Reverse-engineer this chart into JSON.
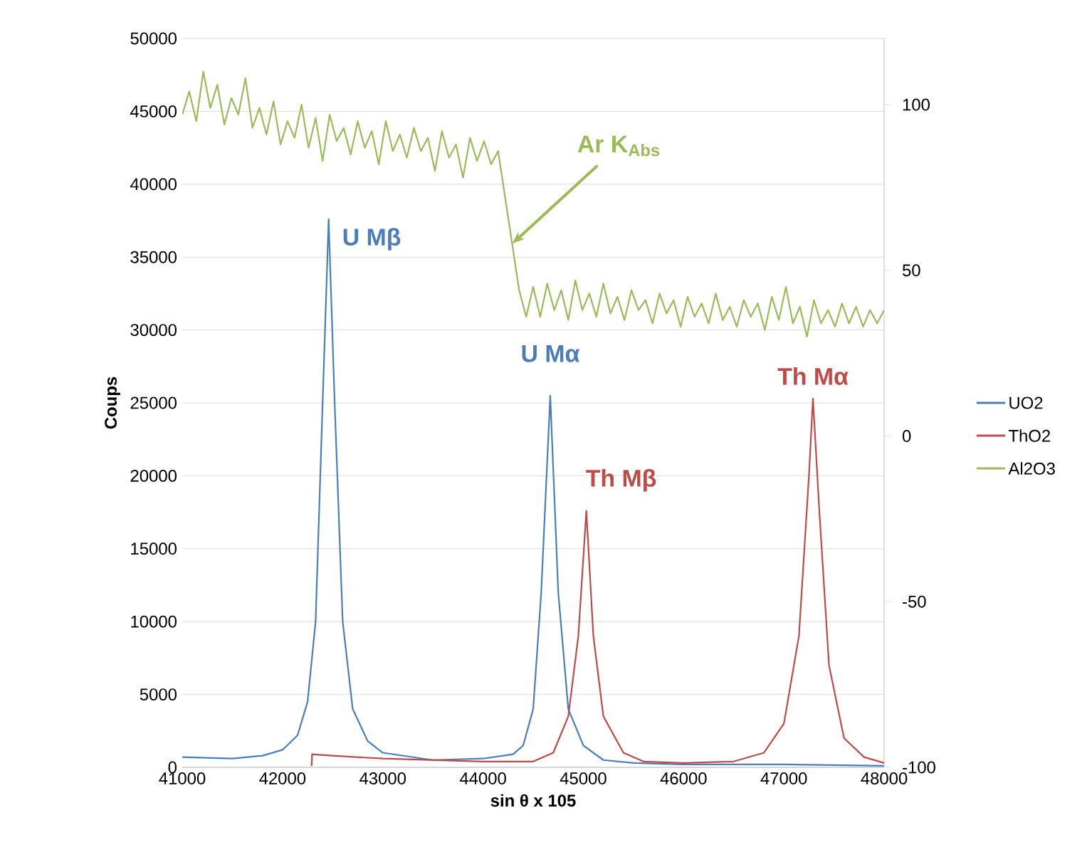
{
  "chart_data": {
    "type": "line",
    "xlabel": "sin θ x 105",
    "ylabel": "Coups",
    "xlim": [
      41000,
      48000
    ],
    "xticks": [
      41000,
      42000,
      43000,
      44000,
      45000,
      46000,
      47000,
      48000
    ],
    "ylim": [
      0,
      50000
    ],
    "yticks": [
      0,
      5000,
      10000,
      15000,
      20000,
      25000,
      30000,
      35000,
      40000,
      45000,
      50000
    ],
    "y2lim": [
      -100,
      120
    ],
    "y2ticks": [
      -100,
      -50,
      0,
      50,
      100
    ],
    "grid": "y",
    "legend": "right",
    "series": [
      {
        "name": "UO2",
        "color": "#4a7ebb",
        "x": [
          41000,
          41500,
          41800,
          42000,
          42150,
          42250,
          42330,
          42400,
          42460,
          42520,
          42600,
          42700,
          42850,
          43000,
          43500,
          44000,
          44300,
          44400,
          44500,
          44580,
          44670,
          44750,
          44850,
          45000,
          45200,
          45500,
          46000,
          47000,
          48000
        ],
        "values": [
          700,
          600,
          800,
          1200,
          2200,
          4500,
          10000,
          25000,
          37600,
          25000,
          10000,
          4000,
          1800,
          1000,
          500,
          600,
          900,
          1500,
          4000,
          12000,
          25500,
          12000,
          4000,
          1500,
          500,
          300,
          200,
          200,
          100
        ]
      },
      {
        "name": "ThO2",
        "color": "#be4b48",
        "x": [
          42290,
          42295,
          42500,
          43000,
          43500,
          44000,
          44500,
          44700,
          44850,
          44950,
          45030,
          45100,
          45200,
          45400,
          45600,
          46000,
          46500,
          46800,
          47000,
          47150,
          47250,
          47290,
          47350,
          47450,
          47600,
          47800,
          48000
        ],
        "values": [
          100,
          900,
          800,
          600,
          500,
          400,
          400,
          1000,
          3500,
          9000,
          17600,
          9000,
          3500,
          1000,
          400,
          300,
          400,
          1000,
          3000,
          9000,
          20000,
          25300,
          18000,
          7000,
          2000,
          700,
          300
        ]
      },
      {
        "name": "Al2O3",
        "color": "#9bbb59",
        "axis": "y2",
        "x": [
          41000,
          41070,
          41140,
          41210,
          41280,
          41350,
          41420,
          41490,
          41560,
          41630,
          41700,
          41770,
          41840,
          41910,
          41980,
          42050,
          42120,
          42190,
          42260,
          42330,
          42400,
          42470,
          42540,
          42610,
          42680,
          42750,
          42820,
          42890,
          42960,
          43030,
          43100,
          43170,
          43240,
          43310,
          43380,
          43450,
          43520,
          43590,
          43660,
          43730,
          43800,
          43870,
          43940,
          44010,
          44080,
          44150,
          44220,
          44290,
          44360,
          44430,
          44500,
          44570,
          44640,
          44710,
          44780,
          44850,
          44920,
          44990,
          45060,
          45130,
          45200,
          45270,
          45340,
          45410,
          45480,
          45550,
          45620,
          45690,
          45760,
          45830,
          45900,
          45970,
          46040,
          46110,
          46180,
          46250,
          46320,
          46390,
          46460,
          46530,
          46600,
          46670,
          46740,
          46810,
          46880,
          46950,
          47020,
          47090,
          47160,
          47230,
          47300,
          47370,
          47440,
          47510,
          47580,
          47650,
          47720,
          47790,
          47860,
          47930,
          48000
        ],
        "values": [
          97,
          104,
          95,
          110,
          99,
          106,
          94,
          102,
          97,
          108,
          93,
          99,
          91,
          101,
          88,
          95,
          90,
          100,
          87,
          96,
          83,
          97,
          89,
          93,
          85,
          95,
          87,
          92,
          82,
          95,
          86,
          91,
          84,
          93,
          86,
          90,
          80,
          92,
          84,
          88,
          78,
          90,
          83,
          89,
          82,
          86,
          72,
          58,
          44,
          36,
          45,
          36,
          46,
          38,
          44,
          35,
          47,
          38,
          43,
          36,
          46,
          37,
          42,
          35,
          44,
          38,
          41,
          34,
          43,
          37,
          41,
          33,
          42,
          36,
          40,
          34,
          43,
          35,
          39,
          33,
          41,
          36,
          40,
          32,
          42,
          35,
          45,
          34,
          39,
          30,
          41,
          34,
          38,
          33,
          40,
          34,
          39,
          33,
          38,
          34,
          38
        ]
      }
    ],
    "annotations": [
      {
        "text": "U Mβ",
        "x": 42460,
        "y": 37600
      },
      {
        "text": "U Mα",
        "x": 44670,
        "y": 25500
      },
      {
        "text": "Th Mβ",
        "x": 45030,
        "y": 17600
      },
      {
        "text": "Th Mα",
        "x": 47290,
        "y": 25300
      },
      {
        "text": "Ar  K$_{Abs}$",
        "x": 44290,
        "y": 35909
      }
    ]
  }
}
